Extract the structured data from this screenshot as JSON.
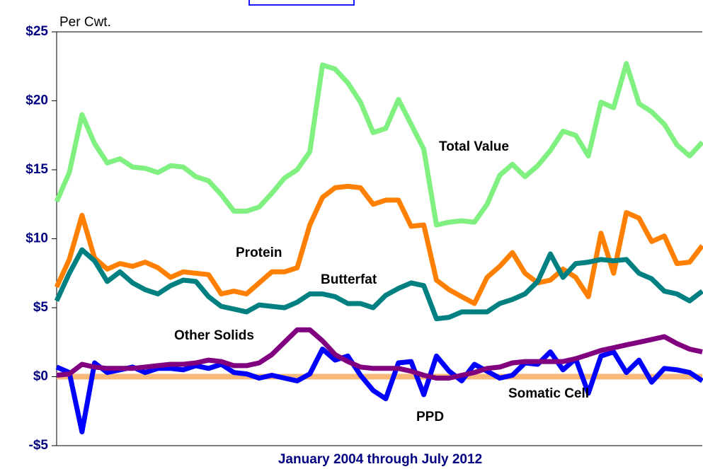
{
  "chart_data": {
    "type": "line",
    "y_label": "Per Cwt.",
    "x_label": "January 2004 through July 2012",
    "ylim": [
      -5,
      25
    ],
    "yticks": [
      {
        "value": -5,
        "label": "-$5"
      },
      {
        "value": 0,
        "label": "$0"
      },
      {
        "value": 5,
        "label": "$5"
      },
      {
        "value": 10,
        "label": "$10"
      },
      {
        "value": 15,
        "label": "$15"
      },
      {
        "value": 20,
        "label": "$20"
      },
      {
        "value": 25,
        "label": "$25"
      }
    ],
    "series": [
      {
        "name": "Somatic Cell",
        "color": "#f8b878",
        "values": [
          0,
          0,
          0,
          0,
          0,
          0,
          0,
          0,
          0,
          0,
          0,
          0,
          0,
          0,
          0,
          0,
          0,
          0,
          0,
          0,
          0,
          0,
          0,
          0,
          0,
          0,
          0,
          0,
          0,
          0,
          0,
          0,
          0,
          0,
          0,
          0,
          0,
          0,
          0,
          0,
          0,
          0,
          0,
          0,
          0,
          0,
          0,
          0,
          0,
          0,
          0,
          0
        ]
      },
      {
        "name": "Total Value",
        "color": "#80f080",
        "values": [
          12.7,
          14.8,
          19.0,
          16.9,
          15.5,
          15.8,
          15.2,
          15.1,
          14.8,
          15.3,
          15.2,
          14.5,
          14.2,
          13.2,
          12.0,
          12.0,
          12.3,
          13.3,
          14.4,
          15.0,
          16.3,
          22.6,
          22.3,
          21.3,
          19.9,
          17.7,
          18.0,
          20.1,
          18.3,
          16.5,
          11.0,
          11.2,
          11.3,
          11.2,
          12.5,
          14.6,
          15.4,
          14.5,
          15.3,
          16.4,
          17.8,
          17.5,
          16.0,
          19.9,
          19.5,
          22.7,
          19.8,
          19.2,
          18.3,
          16.8,
          16.0,
          17.0
        ]
      },
      {
        "name": "Protein",
        "color": "#ff8000",
        "values": [
          6.5,
          8.5,
          11.7,
          8.6,
          7.8,
          8.2,
          8.0,
          8.3,
          7.9,
          7.2,
          7.6,
          7.5,
          7.4,
          6.0,
          6.2,
          6.0,
          6.8,
          7.6,
          7.6,
          7.9,
          11.0,
          13.0,
          13.7,
          13.8,
          13.7,
          12.5,
          12.8,
          12.8,
          10.9,
          11.0,
          7.0,
          6.3,
          5.8,
          5.3,
          7.2,
          8.0,
          9.0,
          7.5,
          6.8,
          7.0,
          7.8,
          7.2,
          5.8,
          10.4,
          7.5,
          11.9,
          11.5,
          9.8,
          10.2,
          8.2,
          8.3,
          9.5
        ]
      },
      {
        "name": "Butterfat",
        "color": "#008080",
        "values": [
          5.5,
          7.5,
          9.2,
          8.4,
          6.9,
          7.6,
          6.8,
          6.3,
          6.0,
          6.6,
          7.0,
          6.9,
          5.8,
          5.1,
          4.9,
          4.7,
          5.2,
          5.1,
          5.0,
          5.4,
          6.0,
          6.0,
          5.8,
          5.3,
          5.3,
          5.0,
          5.9,
          6.4,
          6.8,
          6.6,
          4.2,
          4.3,
          4.7,
          4.7,
          4.7,
          5.3,
          5.6,
          6.0,
          6.9,
          8.9,
          7.2,
          8.2,
          8.3,
          8.5,
          8.4,
          8.5,
          7.5,
          7.1,
          6.2,
          6.0,
          5.5,
          6.2
        ]
      },
      {
        "name": "PPD",
        "color": "#0000ff",
        "values": [
          0.7,
          0.3,
          -4.0,
          1.0,
          0.3,
          0.5,
          0.7,
          0.3,
          0.6,
          0.6,
          0.5,
          0.8,
          0.6,
          0.9,
          0.3,
          0.2,
          -0.1,
          0.1,
          -0.1,
          -0.3,
          0.2,
          2.0,
          1.2,
          1.5,
          0.1,
          -1.0,
          -1.6,
          1.0,
          1.1,
          -1.3,
          1.5,
          0.4,
          -0.3,
          0.9,
          0.4,
          -0.1,
          0.1,
          1.0,
          0.9,
          1.8,
          0.5,
          1.3,
          -1.2,
          1.5,
          1.8,
          0.3,
          1.2,
          -0.4,
          0.6,
          0.5,
          0.3,
          -0.3
        ]
      },
      {
        "name": "Other Solids",
        "color": "#800080",
        "values": [
          0.1,
          0.2,
          0.9,
          0.7,
          0.6,
          0.6,
          0.6,
          0.7,
          0.8,
          0.9,
          0.9,
          1.0,
          1.2,
          1.1,
          0.8,
          0.8,
          1.0,
          1.6,
          2.5,
          3.4,
          3.4,
          2.6,
          1.6,
          1.1,
          0.7,
          0.6,
          0.6,
          0.6,
          0.4,
          0.1,
          -0.1,
          -0.1,
          0.1,
          0.3,
          0.6,
          0.7,
          1.0,
          1.1,
          1.1,
          1.1,
          1.1,
          1.3,
          1.6,
          1.9,
          2.1,
          2.3,
          2.5,
          2.7,
          2.9,
          2.4,
          2.0,
          1.8
        ]
      }
    ]
  }
}
